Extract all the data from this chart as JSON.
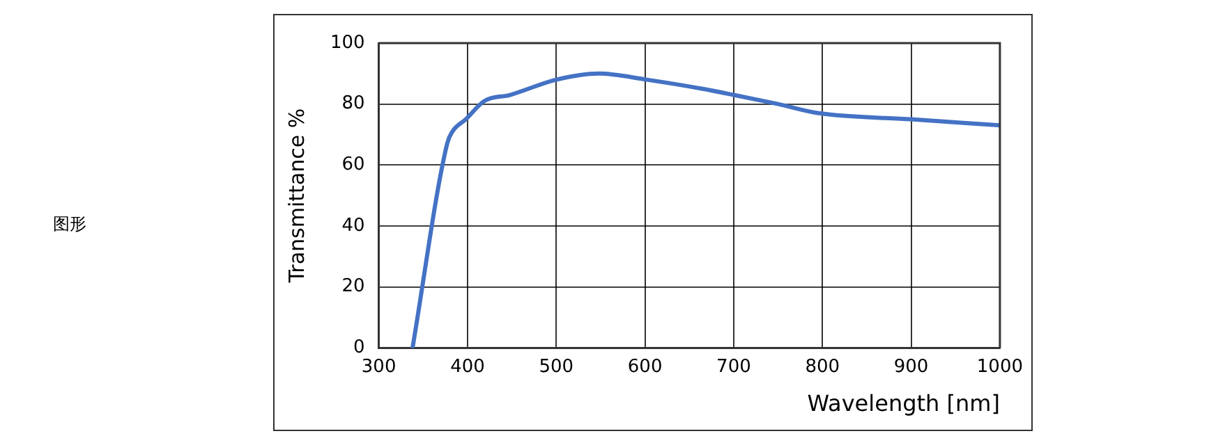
{
  "chart_data": {
    "type": "line",
    "xlabel": "Wavelength [nm]",
    "ylabel": "Transmittance %",
    "annotations": [
      "图形"
    ],
    "series": [
      {
        "color": "#4472c4",
        "x": [
          338,
          377,
          383,
          398,
          419,
          448,
          500,
          548,
          602,
          665,
          700,
          750,
          796,
          900,
          1000
        ],
        "values": [
          0,
          67,
          71,
          75,
          81,
          83,
          88,
          90,
          88,
          85,
          83,
          80,
          77,
          75,
          73
        ]
      }
    ],
    "xlim": [
      300,
      1000
    ],
    "xticks": [
      300,
      400,
      500,
      600,
      700,
      800,
      900,
      1000
    ],
    "ylim": [
      0,
      100
    ],
    "yticks": [
      0,
      20,
      40,
      60,
      80,
      100
    ],
    "grid": true,
    "marker": "none",
    "line_style": "solid"
  }
}
